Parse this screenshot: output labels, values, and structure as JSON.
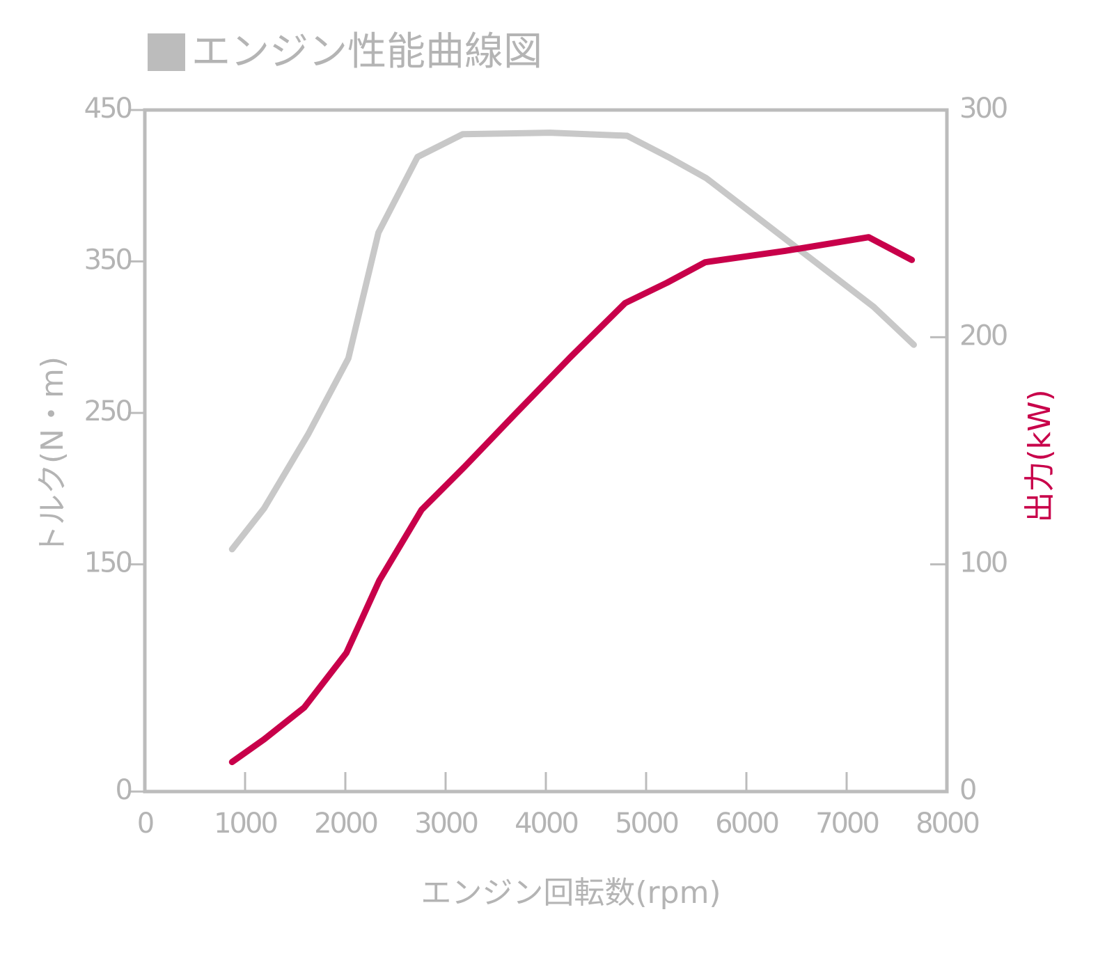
{
  "chart_data": {
    "type": "line",
    "title": "エンジン性能曲線図",
    "xlabel": "エンジン回転数(rpm)",
    "ylabel": "トルク(N・m)",
    "y2label": "出力(kW)",
    "xlim": [
      0,
      8000
    ],
    "xticks": [
      0,
      1000,
      2000,
      3000,
      4000,
      5000,
      6000,
      7000,
      8000
    ],
    "ylim": [
      0,
      450
    ],
    "yticks": [
      0,
      150,
      250,
      350,
      450
    ],
    "y2lim": [
      0,
      300
    ],
    "y2ticks": [
      0,
      100,
      200,
      300
    ],
    "series": [
      {
        "name": "トルク",
        "color": "#c8c8c8",
        "x": [
          870,
          1190,
          1630,
          2030,
          2330,
          2720,
          3170,
          4040,
          4810,
          5220,
          5600,
          7270,
          7670
        ],
        "values": [
          160,
          187,
          236,
          286,
          369,
          419,
          434,
          435,
          433,
          419,
          405,
          320,
          295
        ]
      },
      {
        "name": "出力",
        "color": "#c8004a",
        "axis": "y2",
        "x": [
          870,
          1190,
          1590,
          2010,
          2340,
          2760,
          3190,
          3690,
          4240,
          4790,
          5210,
          5590,
          6390,
          7220,
          7650
        ],
        "values": [
          13,
          23,
          37,
          61,
          93,
          124,
          143,
          166,
          191,
          215,
          224,
          233,
          238,
          244,
          234
        ]
      }
    ]
  }
}
